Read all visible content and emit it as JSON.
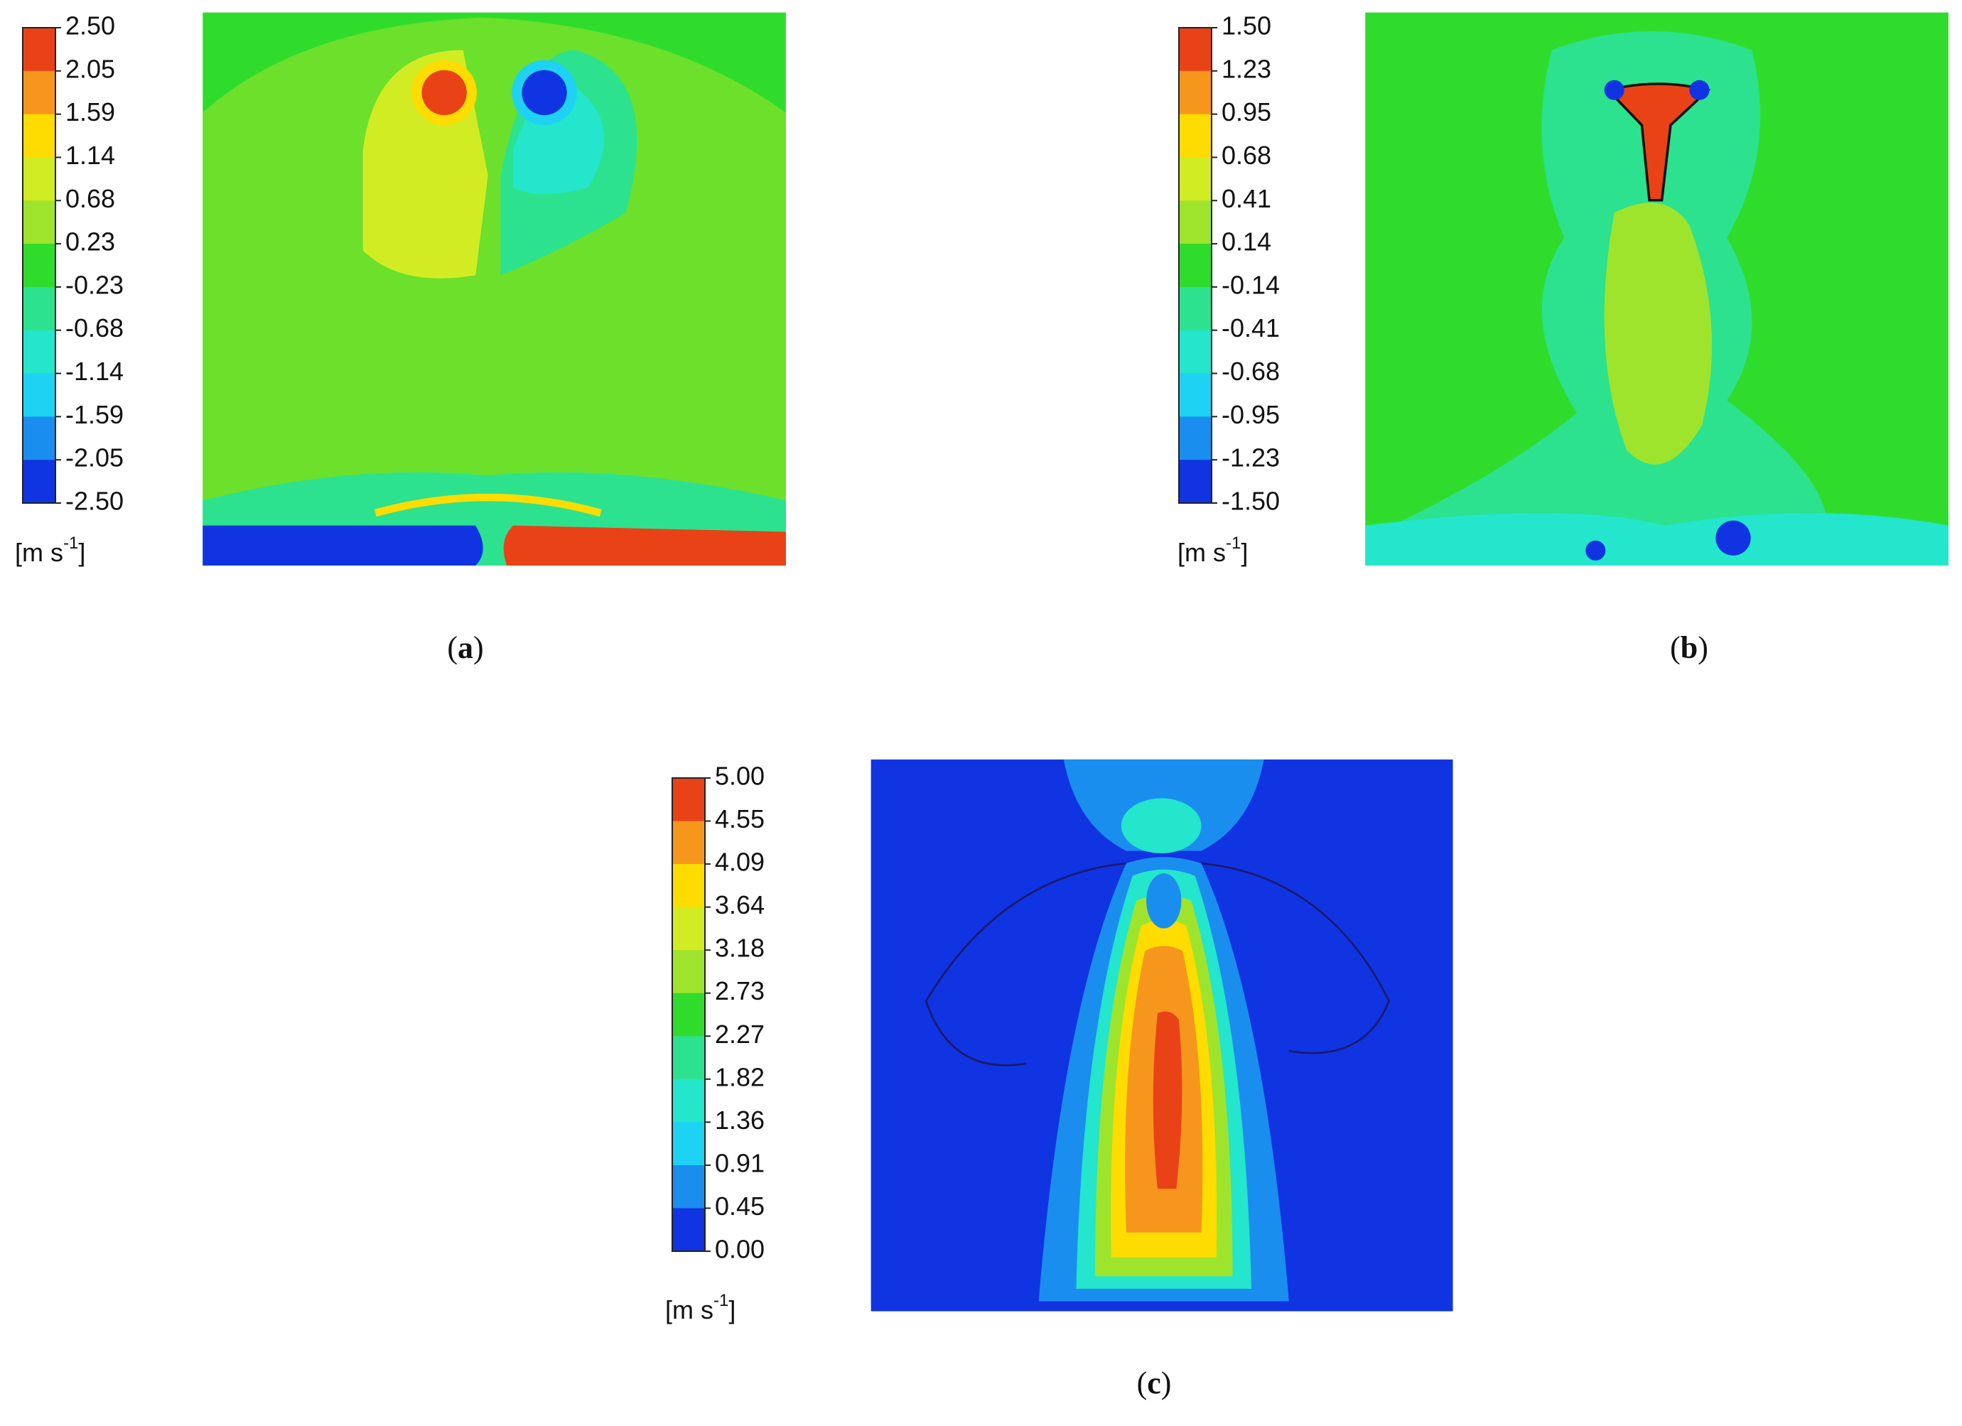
{
  "panels": [
    {
      "label": {
        "open": "(",
        "letter": "a",
        "close": ")"
      },
      "colorbar": {
        "ticks": [
          "2.50",
          "2.05",
          "1.59",
          "1.14",
          "0.68",
          "0.23",
          "-0.23",
          "-0.68",
          "-1.14",
          "-1.59",
          "-2.05",
          "-2.50"
        ]
      },
      "unit": {
        "base": "[m s",
        "exponent": "-1",
        "close": "]"
      }
    },
    {
      "label": {
        "open": "(",
        "letter": "b",
        "close": ")"
      },
      "colorbar": {
        "ticks": [
          "1.50",
          "1.23",
          "0.95",
          "0.68",
          "0.41",
          "0.14",
          "-0.14",
          "-0.41",
          "-0.68",
          "-0.95",
          "-1.23",
          "-1.50"
        ]
      },
      "unit": {
        "base": "[m s",
        "exponent": "-1",
        "close": "]"
      }
    },
    {
      "label": {
        "open": "(",
        "letter": "c",
        "close": ")"
      },
      "colorbar": {
        "ticks": [
          "5.00",
          "4.55",
          "4.09",
          "3.64",
          "3.18",
          "2.73",
          "2.27",
          "1.82",
          "1.36",
          "0.91",
          "0.45",
          "0.00"
        ]
      },
      "unit": {
        "base": "[m s",
        "exponent": "-1",
        "close": "]"
      }
    }
  ],
  "colormap": [
    "#ea4217",
    "#f7961c",
    "#ffdc00",
    "#d2ec24",
    "#9ee42c",
    "#2fdc2c",
    "#2ce28e",
    "#23e6cc",
    "#1ed2f4",
    "#1a8eef",
    "#1034e2"
  ]
}
